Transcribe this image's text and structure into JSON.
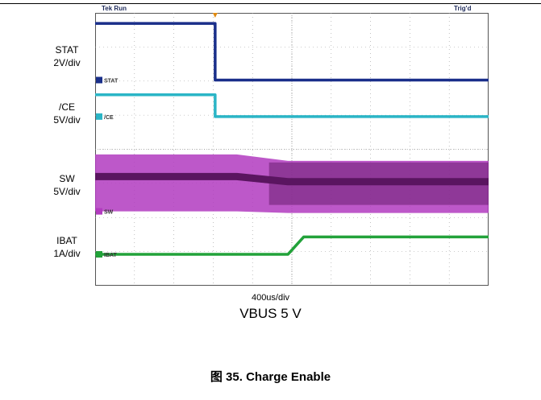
{
  "header": {
    "left": "Tek Run",
    "right": "Trig'd"
  },
  "channels": [
    {
      "name": "STAT",
      "scale": "2V/div",
      "marker": "STAT",
      "color": "#1a2f8a"
    },
    {
      "name": "/CE",
      "scale": "5V/div",
      "marker": "/CE",
      "color": "#2bb5c6"
    },
    {
      "name": "SW",
      "scale": "5V/div",
      "marker": "SW",
      "color": "#b23bbf"
    },
    {
      "name": "IBAT",
      "scale": "1A/div",
      "marker": "IBAT",
      "color": "#22a23a"
    }
  ],
  "footer": {
    "time_scale": "400us/div",
    "condition": "VBUS 5 V"
  },
  "figure_caption": "图 35. Charge Enable",
  "chart_data": {
    "type": "line",
    "title": "",
    "grid": true,
    "x_divisions": 10,
    "y_divisions": 8,
    "xlim": [
      0,
      10
    ],
    "series": [
      {
        "name": "STAT",
        "x": [
          0,
          3.05,
          3.05,
          10
        ],
        "y": [
          7.69,
          7.69,
          6.03,
          6.03
        ]
      },
      {
        "name": "/CE",
        "x": [
          0,
          3.05,
          3.05,
          10
        ],
        "y": [
          5.6,
          5.6,
          4.96,
          4.96
        ]
      },
      {
        "name": "SW",
        "x": [
          0,
          3.6,
          4.9,
          10
        ],
        "y": [
          3.2,
          3.2,
          3.05,
          3.05
        ]
      },
      {
        "name": "IBAT",
        "x": [
          0,
          4.9,
          5.3,
          10
        ],
        "y": [
          0.92,
          0.92,
          1.43,
          1.43
        ]
      }
    ]
  }
}
